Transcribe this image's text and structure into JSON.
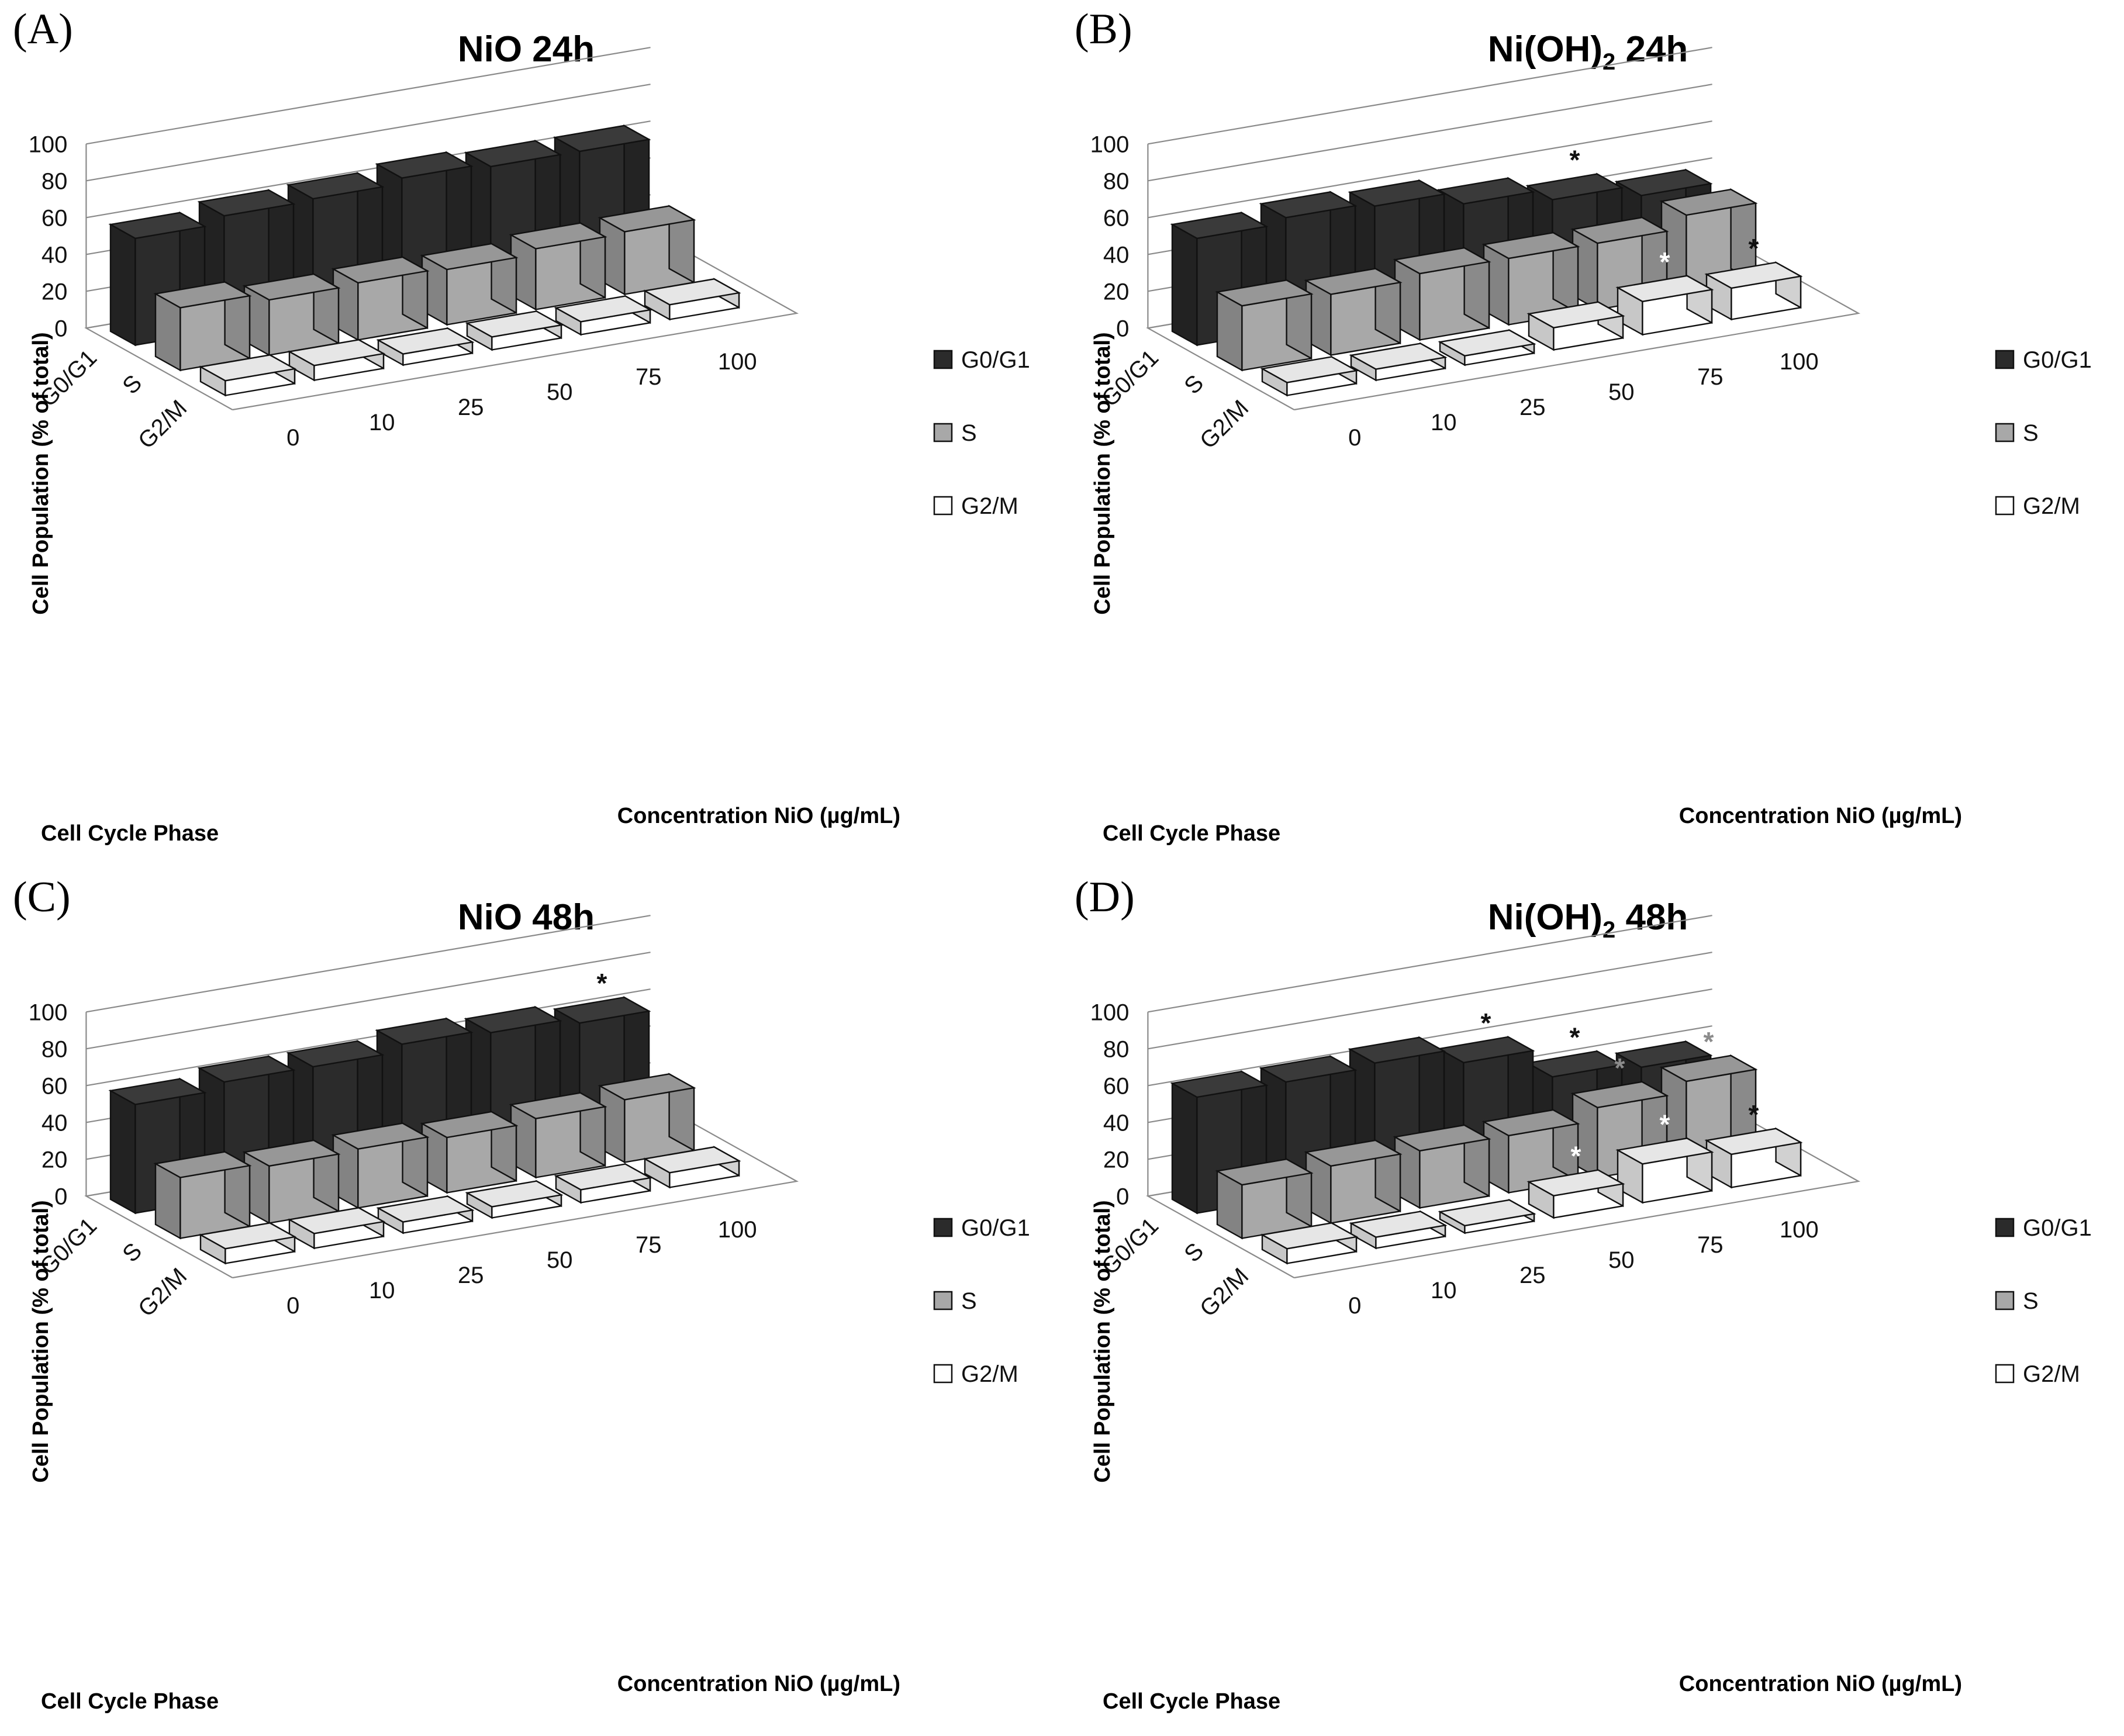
{
  "panels": [
    {
      "letter": "(A)",
      "title_main": "NiO 24h",
      "title_sub": "",
      "title_suffix": ""
    },
    {
      "letter": "(B)",
      "title_main": "Ni(OH)",
      "title_sub": "2",
      "title_suffix": " 24h"
    },
    {
      "letter": "(C)",
      "title_main": "NiO 48h",
      "title_sub": "",
      "title_suffix": ""
    },
    {
      "letter": "(D)",
      "title_main": "Ni(OH)",
      "title_sub": "2",
      "title_suffix": " 48h"
    }
  ],
  "colors": {
    "G0/G1": "#2b2b2b",
    "S": "#a8a8a8",
    "G2/M": "#ffffff",
    "star_black": "#111111",
    "star_gray": "#8c8c8c",
    "star_white": "#ffffff"
  },
  "chart_data": [
    {
      "type": "bar3d",
      "title": "NiO 24h",
      "xlabel": "Concentration NiO (µg/mL)",
      "ylabel": "Cell Population (% of total)",
      "zlabel": "Cell Cycle Phase",
      "ylim": [
        0,
        100
      ],
      "yticks": [
        0,
        20,
        40,
        60,
        80,
        100
      ],
      "categories": [
        "0",
        "10",
        "25",
        "50",
        "75",
        "100"
      ],
      "series": [
        {
          "name": "G0/G1",
          "values": [
            58,
            62,
            63,
            66,
            64,
            64
          ]
        },
        {
          "name": "S",
          "values": [
            34,
            30,
            31,
            30,
            33,
            34
          ]
        },
        {
          "name": "G2/M",
          "values": [
            8,
            8,
            6,
            7,
            7,
            8
          ]
        }
      ],
      "annotations": [],
      "legend": "right"
    },
    {
      "type": "bar3d",
      "title": "Ni(OH)2 24h",
      "xlabel": "Concentration NiO (µg/mL)",
      "ylabel": "Cell Population (% of total)",
      "zlabel": "Cell Cycle Phase",
      "ylim": [
        0,
        100
      ],
      "yticks": [
        0,
        20,
        40,
        60,
        80,
        100
      ],
      "categories": [
        "0",
        "10",
        "25",
        "50",
        "75",
        "100"
      ],
      "series": [
        {
          "name": "G0/G1",
          "values": [
            58,
            61,
            59,
            52,
            46,
            40
          ]
        },
        {
          "name": "S",
          "values": [
            35,
            33,
            36,
            36,
            36,
            43
          ]
        },
        {
          "name": "G2/M",
          "values": [
            7,
            6,
            5,
            12,
            18,
            17
          ]
        }
      ],
      "annotations": [
        {
          "series": "G0/G1",
          "category": "75",
          "symbol": "*",
          "color": "black"
        },
        {
          "series": "G2/M",
          "category": "75",
          "symbol": "*",
          "color": "white"
        },
        {
          "series": "G2/M",
          "category": "100",
          "symbol": "*",
          "color": "black"
        }
      ],
      "legend": "right"
    },
    {
      "type": "bar3d",
      "title": "NiO 48h",
      "xlabel": "Concentration NiO (µg/mL)",
      "ylabel": "Cell Population (% of total)",
      "zlabel": "Cell Cycle Phase",
      "ylim": [
        0,
        100
      ],
      "yticks": [
        0,
        20,
        40,
        60,
        80,
        100
      ],
      "categories": [
        "0",
        "10",
        "25",
        "50",
        "75",
        "100"
      ],
      "series": [
        {
          "name": "G0/G1",
          "values": [
            59,
            63,
            63,
            67,
            65,
            62
          ]
        },
        {
          "name": "S",
          "values": [
            33,
            31,
            32,
            30,
            32,
            34
          ]
        },
        {
          "name": "G2/M",
          "values": [
            8,
            8,
            6,
            6,
            7,
            8
          ]
        }
      ],
      "annotations": [
        {
          "series": "G0/G1",
          "category": "100",
          "symbol": "*",
          "color": "black"
        }
      ],
      "legend": "right"
    },
    {
      "type": "bar3d",
      "title": "Ni(OH)2 48h",
      "xlabel": "Concentration NiO (µg/mL)",
      "ylabel": "Cell Population (% of total)",
      "zlabel": "Cell Cycle Phase",
      "ylim": [
        0,
        100
      ],
      "yticks": [
        0,
        20,
        40,
        60,
        80,
        100
      ],
      "categories": [
        "0",
        "10",
        "25",
        "50",
        "75",
        "100"
      ],
      "series": [
        {
          "name": "G0/G1",
          "values": [
            63,
            63,
            65,
            57,
            41,
            38
          ]
        },
        {
          "name": "S",
          "values": [
            29,
            31,
            31,
            31,
            38,
            44
          ]
        },
        {
          "name": "G2/M",
          "values": [
            8,
            6,
            4,
            12,
            21,
            18
          ]
        }
      ],
      "annotations": [
        {
          "series": "G0/G1",
          "category": "50",
          "symbol": "*",
          "color": "black"
        },
        {
          "series": "G0/G1",
          "category": "75",
          "symbol": "*",
          "color": "black"
        },
        {
          "series": "S",
          "category": "75",
          "symbol": "*",
          "color": "gray"
        },
        {
          "series": "S",
          "category": "100",
          "symbol": "*",
          "color": "gray"
        },
        {
          "series": "G2/M",
          "category": "50",
          "symbol": "*",
          "color": "white"
        },
        {
          "series": "G2/M",
          "category": "75",
          "symbol": "*",
          "color": "white"
        },
        {
          "series": "G2/M",
          "category": "100",
          "symbol": "*",
          "color": "black"
        }
      ],
      "legend": "right"
    }
  ]
}
